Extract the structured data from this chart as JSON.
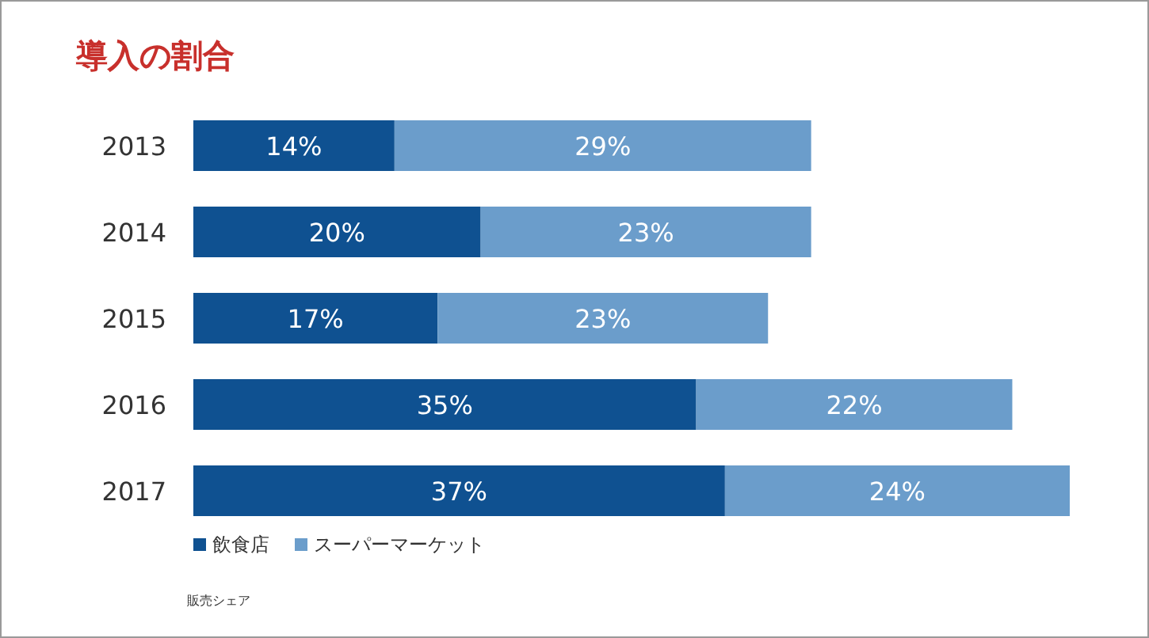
{
  "chart_data": {
    "type": "bar",
    "title": "導入の割合",
    "orientation": "horizontal",
    "stacked": true,
    "categories": [
      "2013",
      "2014",
      "2015",
      "2016",
      "2017"
    ],
    "series": [
      {
        "name": "飲食店",
        "color": "#0f5191",
        "values": [
          14,
          20,
          17,
          35,
          37
        ],
        "value_labels": [
          "14%",
          "20%",
          "17%",
          "35%",
          "37%"
        ]
      },
      {
        "name": "スーパーマーケット",
        "color": "#6b9dcb",
        "values": [
          29,
          23,
          23,
          22,
          24
        ],
        "value_labels": [
          "29%",
          "23%",
          "23%",
          "22%",
          "24%"
        ]
      }
    ],
    "legend": "bottom left",
    "annotations": [
      "販売シェア"
    ]
  }
}
